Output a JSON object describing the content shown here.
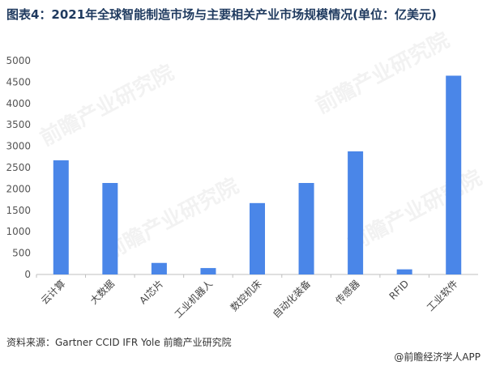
{
  "chart_data": {
    "type": "bar",
    "title": "图表4：2021年全球智能制造市场与主要相关产业市场规模情况(单位：亿美元)",
    "categories": [
      "云计算",
      "大数据",
      "AI芯片",
      "工业机器人",
      "数控机床",
      "自动化装备",
      "传感器",
      "RFID",
      "工业软件"
    ],
    "values": [
      2670,
      2140,
      270,
      150,
      1670,
      2140,
      2880,
      120,
      4650
    ],
    "ylim": [
      0,
      5000
    ],
    "yticks": [
      0,
      500,
      1000,
      1500,
      2000,
      2500,
      3000,
      3500,
      4000,
      4500,
      5000
    ],
    "bar_color": "#4a86e8",
    "grid": false,
    "legend": "none"
  },
  "source": "资料来源：Gartner CCID IFR Yole 前瞻产业研究院",
  "brand": "@前瞻经济学人APP",
  "watermark": "前瞻产业研究院"
}
